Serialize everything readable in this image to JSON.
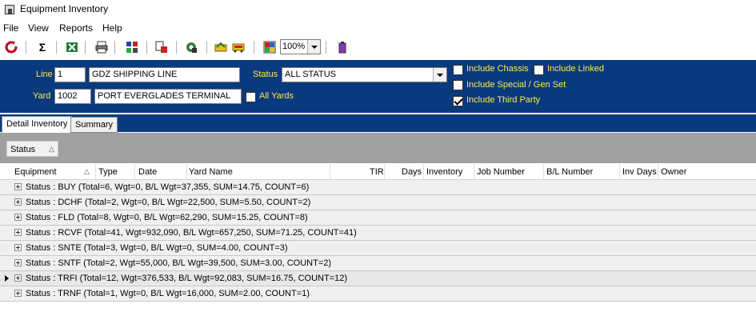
{
  "window": {
    "title": "Equipment Inventory"
  },
  "menu": [
    "File",
    "View",
    "Reports",
    "Help"
  ],
  "toolbar": {
    "icons": [
      "refresh-icon",
      "sum-icon",
      "excel-icon",
      "print-icon",
      "grid-layout-icon",
      "print-preview-icon",
      "settings-icon",
      "export-icon",
      "bus-icon",
      "color-grid-icon",
      "trash-icon"
    ],
    "zoom": "100%"
  },
  "filters": {
    "line_label": "Line",
    "line_code": "1",
    "line_name": "GDZ SHIPPING LINE",
    "yard_label": "Yard",
    "yard_code": "1002",
    "yard_name": "PORT EVERGLADES TERMINAL",
    "status_label": "Status",
    "status_value": "ALL STATUS",
    "all_yards_label": "All Yards",
    "include_chassis_label": "Include Chassis",
    "include_linked_label": "Include Linked",
    "include_special_label": "Include Special / Gen Set",
    "include_third_party_label": "Include Third Party",
    "include_chassis": false,
    "include_linked": false,
    "include_special": false,
    "include_third_party": true,
    "all_yards": false
  },
  "tabs": [
    "Detail Inventory",
    "Summary"
  ],
  "group_by": "Status",
  "columns": [
    "Equipment",
    "Type",
    "Date",
    "Yard Name",
    "TIR",
    "Days",
    "Inventory",
    "Job Number",
    "B/L Number",
    "Inv Days",
    "Owner"
  ],
  "groups": [
    "Status : BUY (Total=6, Wgt=0, B/L Wgt=37,355, SUM=14.75, COUNT=6)",
    "Status : DCHF (Total=2, Wgt=0, B/L Wgt=22,500, SUM=5.50, COUNT=2)",
    "Status : FLD (Total=8, Wgt=0, B/L Wgt=62,290, SUM=15.25, COUNT=8)",
    "Status : RCVF (Total=41, Wgt=932,090, B/L Wgt=657,250, SUM=71.25, COUNT=41)",
    "Status : SNTE (Total=3, Wgt=0, B/L Wgt=0, SUM=4.00, COUNT=3)",
    "Status : SNTF (Total=2, Wgt=55,000, B/L Wgt=39,500, SUM=3.00, COUNT=2)",
    "Status : TRFI (Total=12, Wgt=376,533, B/L Wgt=92,083, SUM=16.75, COUNT=12)",
    "Status : TRNF (Total=1, Wgt=0, B/L Wgt=16,000, SUM=2.00, COUNT=1)"
  ]
}
